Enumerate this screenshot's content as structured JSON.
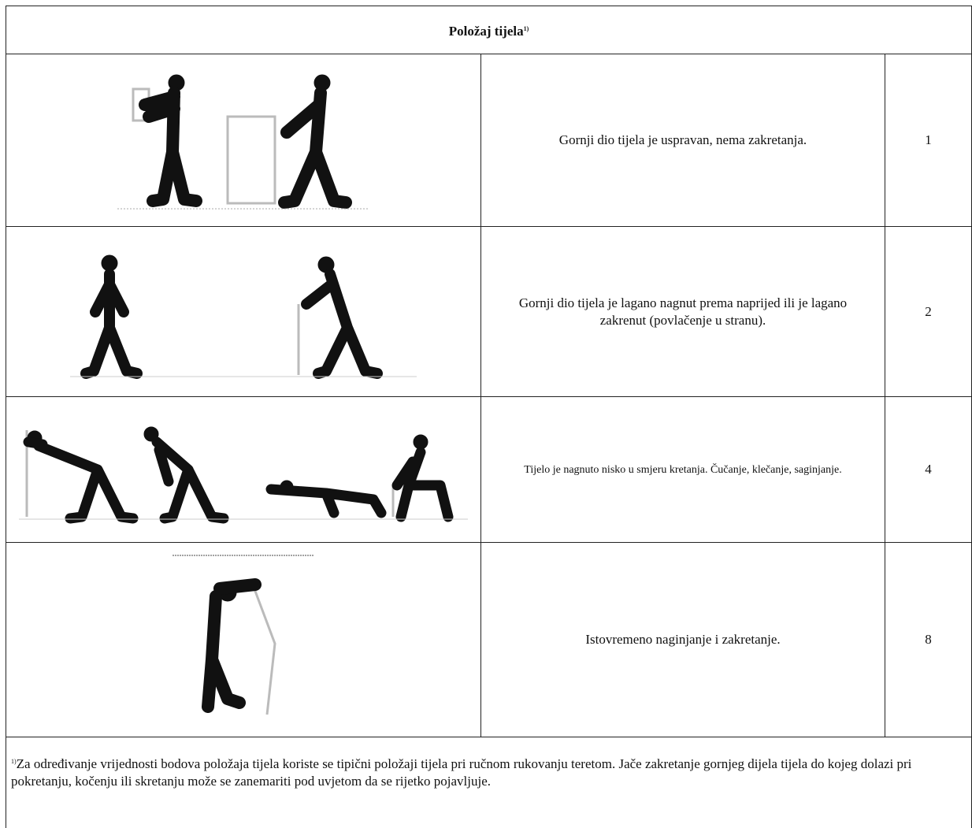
{
  "table": {
    "header": {
      "title": "Položaj tijela",
      "marker": "1)"
    },
    "rows": [
      {
        "description": "Gornji dio tijela je uspravan, nema zakretanja.",
        "score": 1
      },
      {
        "description": "Gornji dio tijela je lagano nagnut prema naprijed ili je lagano zakrenut (povlačenje u stranu).",
        "score": 2
      },
      {
        "description": "Tijelo je nagnuto nisko u smjeru kretanja. Čučanje, klečanje, saginjanje.",
        "score": 4
      },
      {
        "description": "Istovremeno naginjanje i zakretanje.",
        "score": 8
      }
    ],
    "footnote": {
      "marker": "1)",
      "text": "Za određivanje vrijednosti bodova položaja tijela koriste se tipični položaji tijela pri ručnom rukovanju teretom. Jače zakretanje gornjeg dijela tijela do kojeg dolazi pri pokretanju, kočenju ili skretanju može se zanemariti pod uvjetom da se rijetko pojavljuje."
    }
  }
}
